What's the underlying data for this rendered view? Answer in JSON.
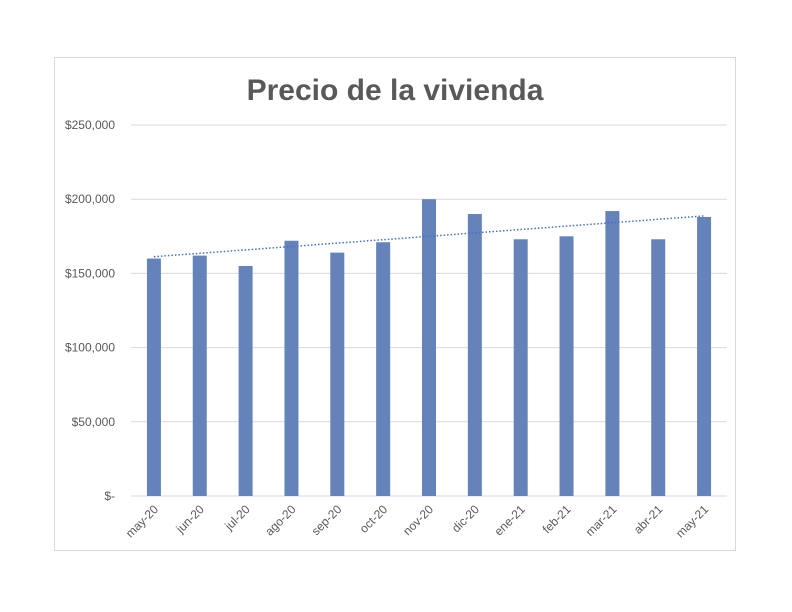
{
  "chart_data": {
    "type": "bar",
    "title": "Precio de la vivienda",
    "xlabel": "",
    "ylabel": "",
    "categories": [
      "may-20",
      "jun-20",
      "jul-20",
      "ago-20",
      "sep-20",
      "oct-20",
      "nov-20",
      "dic-20",
      "ene-21",
      "feb-21",
      "mar-21",
      "abr-21",
      "may-21"
    ],
    "values": [
      160000,
      162000,
      155000,
      172000,
      164000,
      171000,
      200000,
      190000,
      173000,
      175000,
      192000,
      173000,
      188000
    ],
    "ylim": [
      0,
      250000
    ],
    "yticks": [
      0,
      50000,
      100000,
      150000,
      200000,
      250000
    ],
    "ytick_labels": [
      "$-",
      "$50,000",
      "$100,000",
      "$150,000",
      "$200,000",
      "$250,000"
    ],
    "trendline": {
      "type": "linear",
      "style": "dotted"
    },
    "grid": true,
    "legend": "none",
    "colors": {
      "bar": "#6582bb",
      "trendline": "#4472c4",
      "grid": "#d9d9d9",
      "text": "#595959"
    }
  }
}
